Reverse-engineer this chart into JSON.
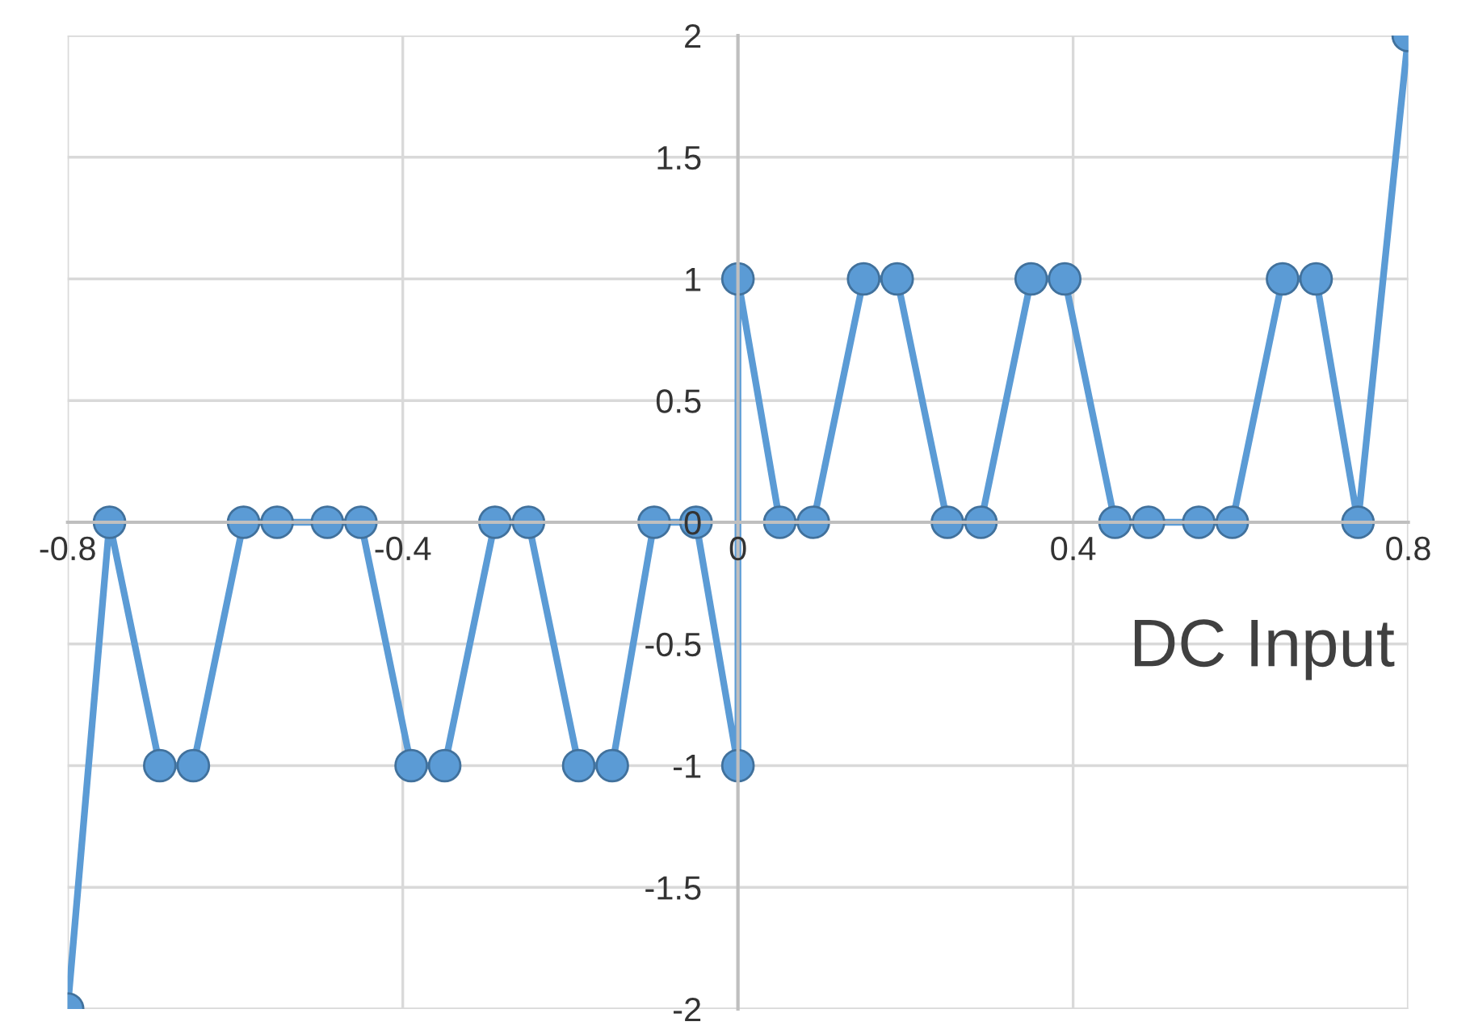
{
  "chart_data": {
    "type": "line",
    "xlabel": "DC Input",
    "series": [
      {
        "color": "#5b9bd5",
        "x": [
          -0.8,
          -0.75,
          -0.69,
          -0.65,
          -0.59,
          -0.55,
          -0.49,
          -0.45,
          -0.39,
          -0.35,
          -0.29,
          -0.25,
          -0.19,
          -0.15,
          -0.1,
          -0.05,
          0,
          0,
          0.05,
          0.09,
          0.15,
          0.19,
          0.25,
          0.29,
          0.35,
          0.39,
          0.45,
          0.49,
          0.55,
          0.59,
          0.65,
          0.69,
          0.74,
          0.8
        ],
        "values": [
          -2,
          0,
          -1,
          -1,
          0,
          0,
          0,
          0,
          -1,
          -1,
          0,
          0,
          -1,
          -1,
          0,
          0,
          -1,
          1,
          0,
          0,
          1,
          1,
          0,
          0,
          1,
          1,
          0,
          0,
          0,
          0,
          1,
          1,
          0,
          2
        ]
      }
    ],
    "xlim": [
      -0.8,
      0.8
    ],
    "ylim": [
      -2,
      2
    ],
    "xticks": [
      -0.8,
      -0.4,
      0,
      0.4,
      0.8
    ],
    "yticks": [
      -2,
      -1.5,
      -1,
      -0.5,
      0,
      0.5,
      1,
      1.5,
      2
    ],
    "grid": true,
    "marker": "circle",
    "line_style": "solid"
  }
}
